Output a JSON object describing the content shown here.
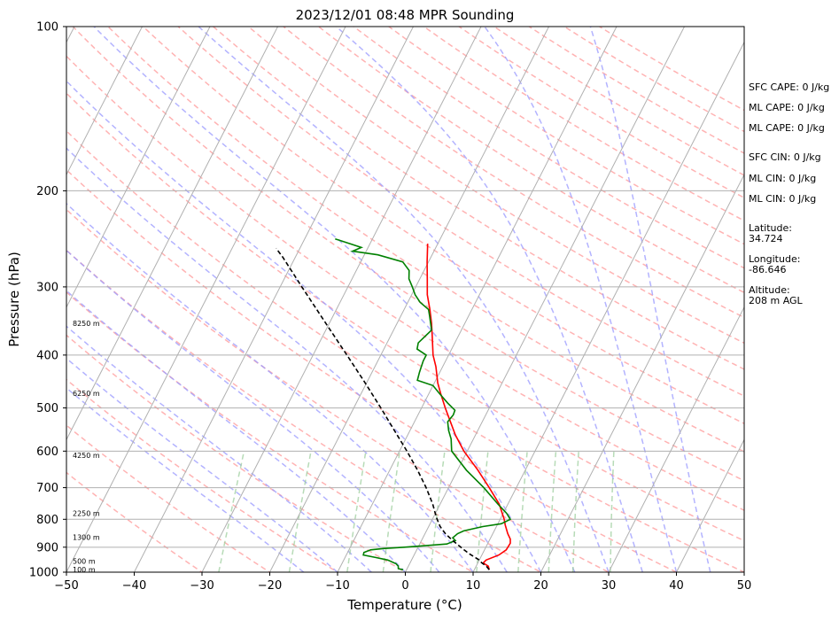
{
  "chart_data": {
    "type": "line",
    "title": "2023/12/01 08:48 MPR Sounding",
    "xlabel": "Temperature (°C)",
    "ylabel": "Pressure (hPa)",
    "xlim": [
      -50,
      50
    ],
    "ylim": [
      1000,
      100
    ],
    "y_scale": "log",
    "skew": "skew-T log-P",
    "grid": true,
    "xticks": [
      -50,
      -40,
      -30,
      -20,
      -10,
      0,
      10,
      20,
      30,
      40,
      50
    ],
    "yticks": [
      100,
      200,
      300,
      400,
      500,
      600,
      700,
      800,
      900,
      1000
    ],
    "series": [
      {
        "color": "#ff0000",
        "points": [
          [
            990,
            12.2
          ],
          [
            975,
            11.8
          ],
          [
            962,
            10.8
          ],
          [
            950,
            11.0
          ],
          [
            930,
            12.5
          ],
          [
            910,
            13.2
          ],
          [
            885,
            13.3
          ],
          [
            870,
            13.0
          ],
          [
            850,
            12.2
          ],
          [
            820,
            11.2
          ],
          [
            800,
            10.6
          ],
          [
            750,
            8.7
          ],
          [
            700,
            6.0
          ],
          [
            650,
            3.0
          ],
          [
            600,
            -0.5
          ],
          [
            560,
            -3.0
          ],
          [
            530,
            -4.7
          ],
          [
            500,
            -6.5
          ],
          [
            470,
            -8.3
          ],
          [
            450,
            -9.5
          ],
          [
            420,
            -11.0
          ],
          [
            400,
            -12.3
          ],
          [
            370,
            -13.8
          ],
          [
            350,
            -14.9
          ],
          [
            330,
            -16.2
          ],
          [
            310,
            -17.7
          ],
          [
            290,
            -18.9
          ],
          [
            270,
            -20.2
          ],
          [
            250,
            -21.5
          ]
        ]
      },
      {
        "color": "#008000",
        "points": [
          [
            990,
            -0.5
          ],
          [
            985,
            -1.3
          ],
          [
            975,
            -1.5
          ],
          [
            965,
            -2.0
          ],
          [
            950,
            -3.5
          ],
          [
            940,
            -5.5
          ],
          [
            930,
            -7.5
          ],
          [
            920,
            -7.6
          ],
          [
            910,
            -6.8
          ],
          [
            905,
            -5.0
          ],
          [
            900,
            -2.0
          ],
          [
            895,
            0.5
          ],
          [
            888,
            4.0
          ],
          [
            875,
            5.0
          ],
          [
            865,
            4.4
          ],
          [
            850,
            4.8
          ],
          [
            840,
            5.5
          ],
          [
            825,
            8.0
          ],
          [
            815,
            10.5
          ],
          [
            800,
            11.5
          ],
          [
            780,
            10.5
          ],
          [
            750,
            8.5
          ],
          [
            700,
            5.2
          ],
          [
            650,
            1.3
          ],
          [
            600,
            -2.3
          ],
          [
            570,
            -3.3
          ],
          [
            550,
            -4.3
          ],
          [
            530,
            -5.1
          ],
          [
            515,
            -4.8
          ],
          [
            505,
            -4.9
          ],
          [
            490,
            -6.5
          ],
          [
            470,
            -8.5
          ],
          [
            455,
            -10.0
          ],
          [
            445,
            -12.7
          ],
          [
            430,
            -13.0
          ],
          [
            410,
            -13.3
          ],
          [
            400,
            -13.3
          ],
          [
            390,
            -15.1
          ],
          [
            380,
            -15.4
          ],
          [
            360,
            -14.4
          ],
          [
            340,
            -15.7
          ],
          [
            330,
            -16.4
          ],
          [
            320,
            -18.2
          ],
          [
            310,
            -19.5
          ],
          [
            300,
            -20.5
          ],
          [
            290,
            -21.6
          ],
          [
            280,
            -22.2
          ],
          [
            270,
            -23.8
          ],
          [
            262,
            -28.0
          ],
          [
            258,
            -32.0
          ],
          [
            254,
            -31.0
          ],
          [
            245,
            -35.5
          ]
        ]
      },
      {
        "color": "#000000",
        "dash": true,
        "points": [
          [
            990,
            12.2
          ],
          [
            975,
            11.5
          ],
          [
            960,
            10.5
          ],
          [
            950,
            10.0
          ],
          [
            925,
            8.0
          ],
          [
            900,
            6.3
          ],
          [
            875,
            4.6
          ],
          [
            850,
            3.0
          ],
          [
            825,
            1.7
          ],
          [
            800,
            0.7
          ],
          [
            775,
            -0.2
          ],
          [
            750,
            -1.1
          ],
          [
            700,
            -3.3
          ],
          [
            650,
            -5.9
          ],
          [
            600,
            -8.9
          ],
          [
            550,
            -12.3
          ],
          [
            500,
            -16.0
          ],
          [
            450,
            -20.2
          ],
          [
            400,
            -25.0
          ],
          [
            350,
            -30.5
          ],
          [
            300,
            -36.8
          ],
          [
            265,
            -41.8
          ],
          [
            255,
            -43.5
          ]
        ]
      }
    ],
    "height_labels": [
      {
        "p": 988,
        "text": "100 m"
      },
      {
        "p": 955,
        "text": "500 m"
      },
      {
        "p": 862,
        "text": "1300 m"
      },
      {
        "p": 780,
        "text": "2250 m"
      },
      {
        "p": 610,
        "text": "4250 m"
      },
      {
        "p": 470,
        "text": "6250 m"
      },
      {
        "p": 350,
        "text": "8250 m"
      }
    ],
    "background_lines": {
      "isotherm_color": "#b0b0b0",
      "dry_adiabat_color": "#ff9999",
      "moist_adiabat_color": "#9999ff",
      "mixing_ratio_color": "#99cc99"
    }
  },
  "stats": {
    "sfc_cape": "SFC CAPE: 0 J/kg",
    "ml_cape_1": "ML CAPE: 0 J/kg",
    "ml_cape_2": "ML CAPE: 0 J/kg",
    "sfc_cin": "SFC CIN: 0 J/kg",
    "ml_cin_1": "ML CIN: 0 J/kg",
    "ml_cin_2": "ML CIN: 0 J/kg",
    "latitude": "Latitude:\n34.724",
    "longitude": "Longitude:\n-86.646",
    "altitude": "Altitude:\n208 m AGL"
  }
}
